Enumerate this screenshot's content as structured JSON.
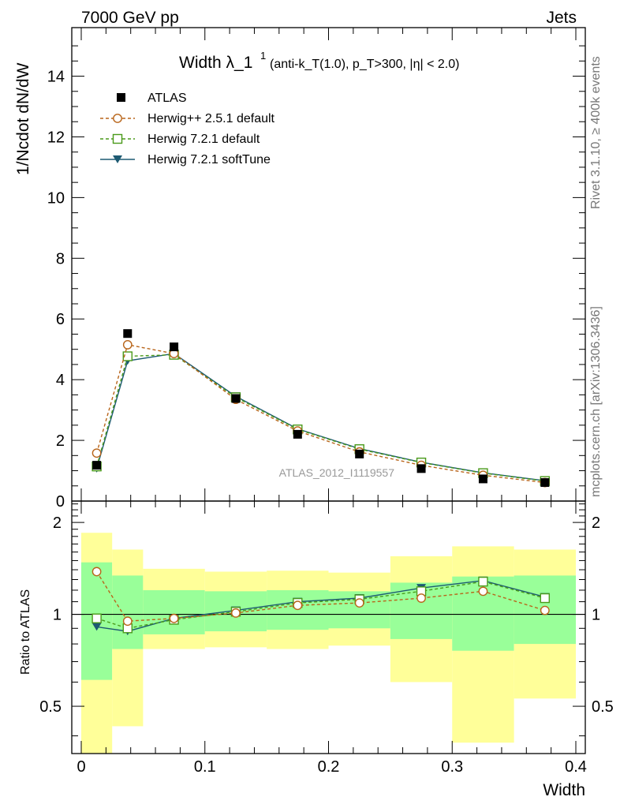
{
  "header": {
    "left": "7000 GeV pp",
    "right": "Jets"
  },
  "side_labels": {
    "rivet": "Rivet 3.1.10, ≥ 400k events",
    "source": "mcplots.cern.ch [arXiv:1306.3436]"
  },
  "colors": {
    "atlas": "#000000",
    "herwigpp": "#b8651a",
    "herwig721": "#4a9a1a",
    "softtune": "#1d5a72",
    "band_inner": "#99ff99",
    "band_outer": "#ffff99"
  },
  "chart_data": [
    {
      "type": "line",
      "title_main": "Width λ_1",
      "title_sup": "1",
      "title_detail": "(anti-k_T(1.0), p_T>300, |η| < 2.0)",
      "analysis_label": "ATLAS_2012_I1119557",
      "ylabel": "1/Ncdot dN/dW",
      "xlabel": "Width",
      "xlim": [
        0,
        0.4
      ],
      "ylim": [
        0,
        15.6
      ],
      "yticks": [
        0,
        2,
        4,
        6,
        8,
        10,
        12,
        14
      ],
      "ytick_labels": [
        "0",
        "2",
        "4",
        "6",
        "8",
        "10",
        "12",
        "14"
      ],
      "bin_edges": [
        0,
        0.025,
        0.05,
        0.1,
        0.15,
        0.2,
        0.25,
        0.3,
        0.35,
        0.4
      ],
      "x": [
        0.0125,
        0.0375,
        0.075,
        0.125,
        0.175,
        0.225,
        0.275,
        0.325,
        0.375
      ],
      "series": [
        {
          "name": "ATLAS",
          "key": "atlas",
          "marker": "square",
          "values": [
            1.18,
            5.52,
            5.08,
            3.38,
            2.2,
            1.55,
            1.07,
            0.73,
            0.61
          ]
        },
        {
          "name": "Herwig++ 2.5.1 default",
          "key": "herwigpp",
          "marker": "circle",
          "values": [
            1.58,
            5.15,
            4.86,
            3.35,
            2.31,
            1.62,
            1.18,
            0.85,
            0.61
          ]
        },
        {
          "name": "Herwig 7.2.1 default",
          "key": "herwig721",
          "marker": "open-square",
          "values": [
            1.14,
            4.77,
            4.82,
            3.42,
            2.36,
            1.71,
            1.27,
            0.92,
            0.66
          ]
        },
        {
          "name": "Herwig 7.2.1 softTune",
          "key": "softtune",
          "marker": "triangle-down",
          "values": [
            1.07,
            4.62,
            4.86,
            3.45,
            2.38,
            1.73,
            1.28,
            0.93,
            0.67
          ]
        }
      ]
    },
    {
      "type": "line",
      "ylabel": "Ratio to ATLAS",
      "xlabel": "Width",
      "y_scale": "log",
      "xlim": [
        0,
        0.4
      ],
      "ylim": [
        0.35,
        2.35
      ],
      "yticks": [
        0.5,
        1,
        2
      ],
      "ytick_labels": [
        "0.5",
        "1",
        "2"
      ],
      "xticks": [
        0,
        0.1,
        0.2,
        0.3,
        0.4
      ],
      "xtick_labels": [
        "0",
        "0.1",
        "0.2",
        "0.3",
        "0.4"
      ],
      "bin_edges": [
        0,
        0.025,
        0.05,
        0.1,
        0.15,
        0.2,
        0.25,
        0.3,
        0.35,
        0.4
      ],
      "x": [
        0.0125,
        0.0375,
        0.075,
        0.125,
        0.175,
        0.225,
        0.275,
        0.325,
        0.375
      ],
      "band_inner": {
        "low": [
          0.61,
          0.77,
          0.86,
          0.88,
          0.89,
          0.9,
          0.83,
          0.76,
          0.8
        ],
        "high": [
          1.48,
          1.34,
          1.2,
          1.19,
          1.2,
          1.19,
          1.27,
          1.33,
          1.34
        ]
      },
      "band_outer": {
        "low": [
          0.35,
          0.43,
          0.77,
          0.78,
          0.77,
          0.79,
          0.6,
          0.38,
          0.53
        ],
        "high": [
          1.85,
          1.63,
          1.41,
          1.38,
          1.39,
          1.37,
          1.55,
          1.67,
          1.63
        ]
      },
      "series": [
        {
          "name": "Herwig++ 2.5.1 default",
          "key": "herwigpp",
          "marker": "circle",
          "values": [
            1.38,
            0.95,
            0.97,
            1.01,
            1.07,
            1.09,
            1.13,
            1.19,
            1.03
          ]
        },
        {
          "name": "Herwig 7.2.1 default",
          "key": "herwig721",
          "marker": "open-square",
          "values": [
            0.97,
            0.9,
            0.96,
            1.02,
            1.09,
            1.12,
            1.19,
            1.28,
            1.13
          ]
        },
        {
          "name": "Herwig 7.2.1 softTune",
          "key": "softtune",
          "marker": "triangle-down",
          "values": [
            0.91,
            0.88,
            0.97,
            1.03,
            1.1,
            1.13,
            1.22,
            1.29,
            1.14
          ]
        }
      ]
    }
  ]
}
